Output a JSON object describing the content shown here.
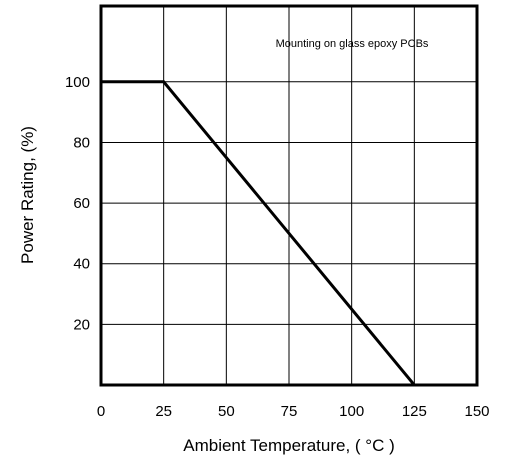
{
  "chart_data": {
    "type": "line",
    "title": "",
    "xlabel": "Ambient Temperature, ( °C )",
    "ylabel": "Power Rating, (%)",
    "xlim": [
      0,
      150
    ],
    "ylim": [
      0,
      125
    ],
    "x_ticks": [
      0,
      25,
      50,
      75,
      100,
      125,
      150
    ],
    "y_ticks": [
      20,
      40,
      60,
      80,
      100
    ],
    "x_tick_labels": [
      "0",
      "25",
      "50",
      "75",
      "100",
      "125",
      "150"
    ],
    "y_tick_labels": [
      "20",
      "40",
      "60",
      "80",
      "100"
    ],
    "grid": true,
    "annotation": "Mounting on glass epoxy PCBs",
    "series": [
      {
        "x": [
          0,
          25,
          125
        ],
        "y": [
          100,
          100,
          0
        ]
      }
    ]
  }
}
